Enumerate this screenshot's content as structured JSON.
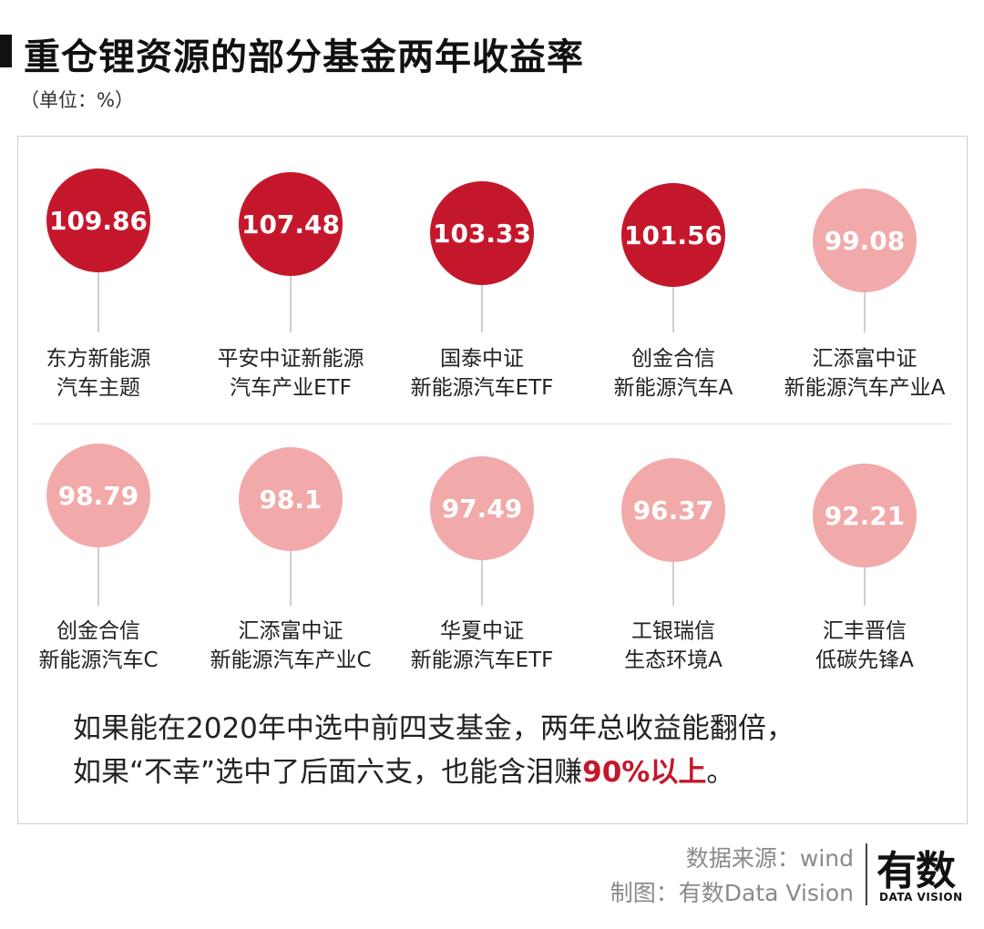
{
  "header": {
    "title": "重仓锂资源的部分基金两年收益率",
    "unit": "（单位：%）"
  },
  "colors": {
    "accent_dark": "#c5172b",
    "accent_light": "#f2a9aa",
    "title_mark": "#111111"
  },
  "chart_data": {
    "type": "bubble-lollipop",
    "title": "重仓锂资源的部分基金两年收益率",
    "unit": "（单位：%）",
    "funds": [
      {
        "name_lines": [
          "东方新能源",
          "汽车主题"
        ],
        "value": "109.86",
        "tier": "dark"
      },
      {
        "name_lines": [
          "平安中证新能源",
          "汽车产业ETF"
        ],
        "value": "107.48",
        "tier": "dark"
      },
      {
        "name_lines": [
          "国泰中证",
          "新能源汽车ETF"
        ],
        "value": "103.33",
        "tier": "dark"
      },
      {
        "name_lines": [
          "创金合信",
          "新能源汽车A"
        ],
        "value": "101.56",
        "tier": "dark"
      },
      {
        "name_lines": [
          "汇添富中证",
          "新能源汽车产业A"
        ],
        "value": "99.08",
        "tier": "light"
      },
      {
        "name_lines": [
          "创金合信",
          "新能源汽车C"
        ],
        "value": "98.79",
        "tier": "light"
      },
      {
        "name_lines": [
          "汇添富中证",
          "新能源汽车产业C"
        ],
        "value": "98.1",
        "tier": "light"
      },
      {
        "name_lines": [
          "华夏中证",
          "新能源汽车ETF"
        ],
        "value": "97.49",
        "tier": "light"
      },
      {
        "name_lines": [
          "工银瑞信",
          "生态环境A"
        ],
        "value": "96.37",
        "tier": "light"
      },
      {
        "name_lines": [
          "汇丰晋信",
          "低碳先锋A"
        ],
        "value": "92.21",
        "tier": "light"
      }
    ]
  },
  "conclusion": {
    "line1": "如果能在2020年中选中前四支基金，两年总收益能翻倍，",
    "line2_before": "如果“不幸”选中了后面六支，也能含泪赚",
    "line2_highlight": "90%以上",
    "line2_after": "。"
  },
  "footer": {
    "source": "数据来源：wind",
    "maker": "制图：有数Data Vision",
    "logo_main": "有数",
    "logo_sub": "DATA VISION"
  }
}
